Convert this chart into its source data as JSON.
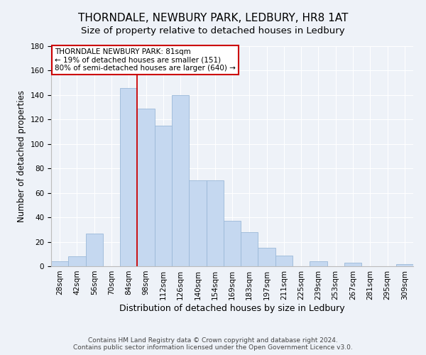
{
  "title": "THORNDALE, NEWBURY PARK, LEDBURY, HR8 1AT",
  "subtitle": "Size of property relative to detached houses in Ledbury",
  "xlabel": "Distribution of detached houses by size in Ledbury",
  "ylabel": "Number of detached properties",
  "bar_labels": [
    "28sqm",
    "42sqm",
    "56sqm",
    "70sqm",
    "84sqm",
    "98sqm",
    "112sqm",
    "126sqm",
    "140sqm",
    "154sqm",
    "169sqm",
    "183sqm",
    "197sqm",
    "211sqm",
    "225sqm",
    "239sqm",
    "253sqm",
    "267sqm",
    "281sqm",
    "295sqm",
    "309sqm"
  ],
  "bar_values": [
    4,
    8,
    27,
    0,
    146,
    129,
    115,
    140,
    70,
    70,
    37,
    28,
    15,
    9,
    0,
    4,
    0,
    3,
    0,
    0,
    2
  ],
  "bar_color": "#c5d8f0",
  "bar_edge_color": "#9ab8d8",
  "vline_x_index": 4,
  "vline_color": "#cc0000",
  "annotation_title": "THORNDALE NEWBURY PARK: 81sqm",
  "annotation_line1": "← 19% of detached houses are smaller (151)",
  "annotation_line2": "80% of semi-detached houses are larger (640) →",
  "annotation_box_color": "#ffffff",
  "annotation_box_edge": "#cc0000",
  "ylim": [
    0,
    180
  ],
  "yticks": [
    0,
    20,
    40,
    60,
    80,
    100,
    120,
    140,
    160,
    180
  ],
  "footer1": "Contains HM Land Registry data © Crown copyright and database right 2024.",
  "footer2": "Contains public sector information licensed under the Open Government Licence v3.0.",
  "background_color": "#eef2f8",
  "title_fontsize": 11,
  "subtitle_fontsize": 9.5,
  "xlabel_fontsize": 9,
  "ylabel_fontsize": 8.5,
  "tick_fontsize": 7.5,
  "annotation_fontsize": 7.5,
  "footer_fontsize": 6.5
}
